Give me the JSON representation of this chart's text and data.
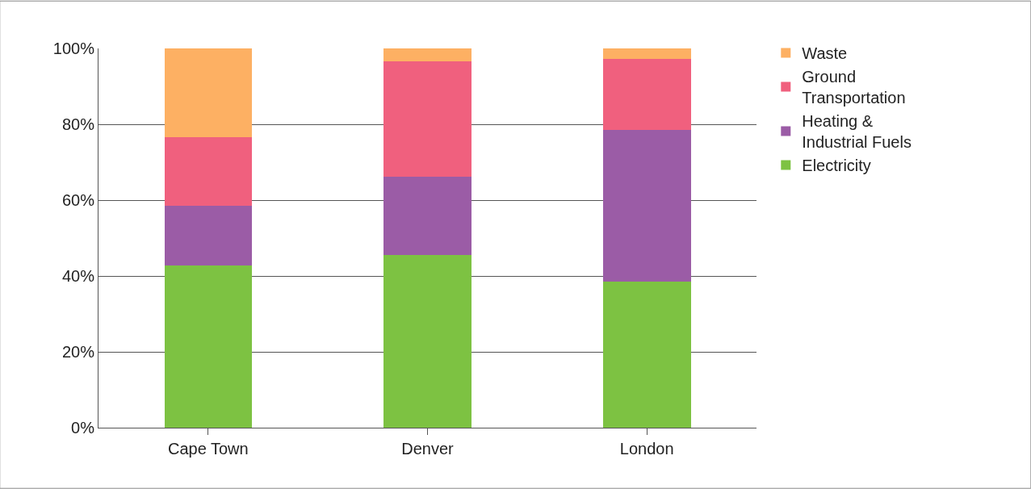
{
  "chart_data": {
    "type": "bar",
    "stacked": true,
    "categories": [
      "Cape Town",
      "Denver",
      "London"
    ],
    "series": [
      {
        "name": "Electricity",
        "color": "#7dc242",
        "values": [
          42.8,
          45.5,
          38.5
        ]
      },
      {
        "name": "Heating & Industrial Fuels",
        "color": "#9b5ca6",
        "values": [
          15.7,
          20.7,
          40.0
        ]
      },
      {
        "name": "Ground Transportation",
        "color": "#f0607e",
        "values": [
          18.1,
          30.4,
          18.7
        ]
      },
      {
        "name": "Waste",
        "color": "#fdb063",
        "values": [
          23.4,
          3.4,
          2.8
        ]
      }
    ],
    "ylim": [
      0,
      100
    ],
    "yticks": [
      {
        "value": 0,
        "label": "0%"
      },
      {
        "value": 20,
        "label": "20%"
      },
      {
        "value": 40,
        "label": "40%"
      },
      {
        "value": 60,
        "label": "60%"
      },
      {
        "value": 80,
        "label": "80%"
      },
      {
        "value": 100,
        "label": "100%"
      }
    ],
    "grid": "y",
    "legend": "top right"
  }
}
